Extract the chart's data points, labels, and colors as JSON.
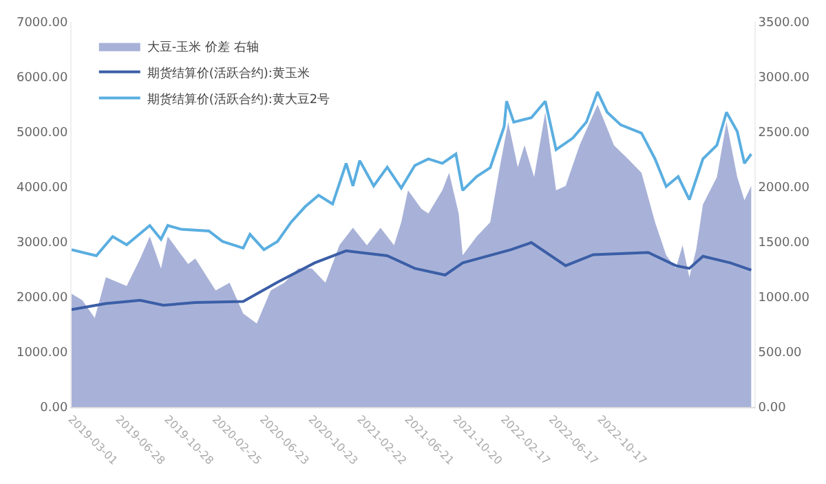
{
  "chart_data": {
    "type": "line",
    "xlim": [
      "2019-03-01",
      "2023-11-06"
    ],
    "xticks": [
      {
        "value": "2019-03-01",
        "label": "2019-03-01"
      },
      {
        "value": "2019-06-28",
        "label": "2019-06-28"
      },
      {
        "value": "2019-10-28",
        "label": "2019-10-28"
      },
      {
        "value": "2020-02-25",
        "label": "2020-02-25"
      },
      {
        "value": "2020-06-23",
        "label": "2020-06-23"
      },
      {
        "value": "2020-10-23",
        "label": "2020-10-23"
      },
      {
        "value": "2021-02-22",
        "label": "2021-02-22"
      },
      {
        "value": "2021-06-21",
        "label": "2021-06-21"
      },
      {
        "value": "2021-10-20",
        "label": "2021-10-20"
      },
      {
        "value": "2022-02-17",
        "label": "2022-02-17"
      },
      {
        "value": "2022-06-17",
        "label": "2022-06-17"
      },
      {
        "value": "2022-10-17",
        "label": "2022-10-17"
      }
    ],
    "ylim": [
      0,
      7000
    ],
    "yticks": [
      {
        "value": 0,
        "label": "0.00"
      },
      {
        "value": 1000,
        "label": "1000.00"
      },
      {
        "value": 2000,
        "label": "2000.00"
      },
      {
        "value": 3000,
        "label": "3000.00"
      },
      {
        "value": 4000,
        "label": "4000.00"
      },
      {
        "value": 5000,
        "label": "5000.00"
      },
      {
        "value": 6000,
        "label": "6000.00"
      },
      {
        "value": 7000,
        "label": "7000.00"
      }
    ],
    "y2lim": [
      0,
      3500
    ],
    "y2ticks": [
      {
        "value": 0,
        "label": "0.00"
      },
      {
        "value": 500,
        "label": "500.00"
      },
      {
        "value": 1000,
        "label": "1000.00"
      },
      {
        "value": 1500,
        "label": "1500.00"
      },
      {
        "value": 2000,
        "label": "2000.00"
      },
      {
        "value": 2500,
        "label": "2500.00"
      },
      {
        "value": 3000,
        "label": "3000.00"
      },
      {
        "value": 3500,
        "label": "3500.00"
      }
    ],
    "legend": "top left",
    "marker": "none",
    "series": [
      {
        "name": "大豆-玉米 价差 右轴",
        "type": "area",
        "axis": "y2",
        "color": "#a8b2d8",
        "x": [
          "2019-03-01",
          "2019-03-28",
          "2019-04-28",
          "2019-05-26",
          "2019-07-17",
          "2019-08-20",
          "2019-09-13",
          "2019-10-11",
          "2019-10-28",
          "2019-12-18",
          "2020-01-05",
          "2020-02-25",
          "2020-03-31",
          "2020-05-04",
          "2020-06-07",
          "2020-07-12",
          "2020-08-15",
          "2020-09-19",
          "2020-10-23",
          "2020-11-26",
          "2020-12-31",
          "2021-02-03",
          "2021-03-10",
          "2021-04-13",
          "2021-05-17",
          "2021-06-04",
          "2021-06-21",
          "2021-07-25",
          "2021-08-11",
          "2021-09-15",
          "2021-10-02",
          "2021-10-26",
          "2021-11-05",
          "2021-12-10",
          "2022-01-13",
          "2022-02-06",
          "2022-02-27",
          "2022-03-23",
          "2022-04-09",
          "2022-05-03",
          "2022-05-31",
          "2022-06-27",
          "2022-07-21",
          "2022-08-25",
          "2022-10-09",
          "2022-11-19",
          "2022-12-23",
          "2023-01-27",
          "2023-03-02",
          "2023-03-30",
          "2023-04-23",
          "2023-05-10",
          "2023-05-27",
          "2023-06-13",
          "2023-06-30",
          "2023-08-04",
          "2023-08-28",
          "2023-09-24",
          "2023-10-12",
          "2023-10-29"
        ],
        "values": [
          1030,
          970,
          810,
          1180,
          1100,
          1350,
          1550,
          1260,
          1550,
          1300,
          1350,
          1060,
          1130,
          850,
          760,
          1060,
          1130,
          1260,
          1260,
          1130,
          1470,
          1630,
          1470,
          1630,
          1470,
          1680,
          1970,
          1800,
          1760,
          1970,
          2130,
          1760,
          1380,
          1550,
          1680,
          2180,
          2590,
          2180,
          2380,
          2090,
          2680,
          1970,
          2010,
          2380,
          2750,
          2380,
          2260,
          2130,
          1680,
          1380,
          1260,
          1470,
          1180,
          1430,
          1840,
          2090,
          2590,
          2090,
          1880,
          2010
        ]
      },
      {
        "name": "期货结算价(活跃合约):黄玉米",
        "color": "#3b5ea6",
        "x": [
          "2019-03-01",
          "2019-05-26",
          "2019-08-20",
          "2019-10-17",
          "2020-01-05",
          "2020-05-04",
          "2020-07-29",
          "2020-10-30",
          "2021-01-17",
          "2021-04-30",
          "2021-07-08",
          "2021-09-22",
          "2021-11-05",
          "2022-03-06",
          "2022-04-26",
          "2022-07-21",
          "2022-09-28",
          "2023-02-13",
          "2023-04-23",
          "2023-05-27",
          "2023-06-30",
          "2023-09-07",
          "2023-10-29"
        ],
        "values": [
          1770,
          1880,
          1940,
          1850,
          1900,
          1920,
          2270,
          2620,
          2840,
          2750,
          2520,
          2400,
          2620,
          2860,
          2990,
          2570,
          2770,
          2810,
          2570,
          2520,
          2740,
          2620,
          2490
        ]
      },
      {
        "name": "期货结算价(活跃合约):黄大豆2号",
        "color": "#5aaee0",
        "x": [
          "2019-03-01",
          "2019-05-02",
          "2019-06-12",
          "2019-07-17",
          "2019-09-13",
          "2019-10-11",
          "2019-10-28",
          "2019-12-01",
          "2020-02-08",
          "2020-03-13",
          "2020-05-04",
          "2020-05-21",
          "2020-06-25",
          "2020-07-29",
          "2020-09-01",
          "2020-10-06",
          "2020-11-09",
          "2020-12-14",
          "2021-01-17",
          "2021-02-03",
          "2021-02-20",
          "2021-03-27",
          "2021-04-30",
          "2021-06-04",
          "2021-07-08",
          "2021-08-11",
          "2021-09-15",
          "2021-10-19",
          "2021-11-05",
          "2021-12-10",
          "2022-01-13",
          "2022-02-17",
          "2022-02-23",
          "2022-03-13",
          "2022-04-26",
          "2022-05-31",
          "2022-06-27",
          "2022-08-08",
          "2022-09-11",
          "2022-10-09",
          "2022-11-02",
          "2022-12-06",
          "2023-01-27",
          "2023-03-02",
          "2023-03-30",
          "2023-04-29",
          "2023-05-27",
          "2023-06-30",
          "2023-08-04",
          "2023-08-28",
          "2023-09-24",
          "2023-10-12",
          "2023-10-29"
        ],
        "values": [
          2860,
          2750,
          3100,
          2950,
          3300,
          3050,
          3300,
          3230,
          3200,
          3010,
          2890,
          3140,
          2860,
          3010,
          3360,
          3640,
          3850,
          3690,
          4430,
          4020,
          4480,
          4020,
          4360,
          3980,
          4390,
          4510,
          4430,
          4600,
          3940,
          4190,
          4350,
          5100,
          5560,
          5180,
          5260,
          5560,
          4680,
          4890,
          5180,
          5730,
          5360,
          5130,
          4980,
          4510,
          4010,
          4190,
          3770,
          4510,
          4760,
          5360,
          5010,
          4430,
          4600
        ]
      }
    ]
  }
}
